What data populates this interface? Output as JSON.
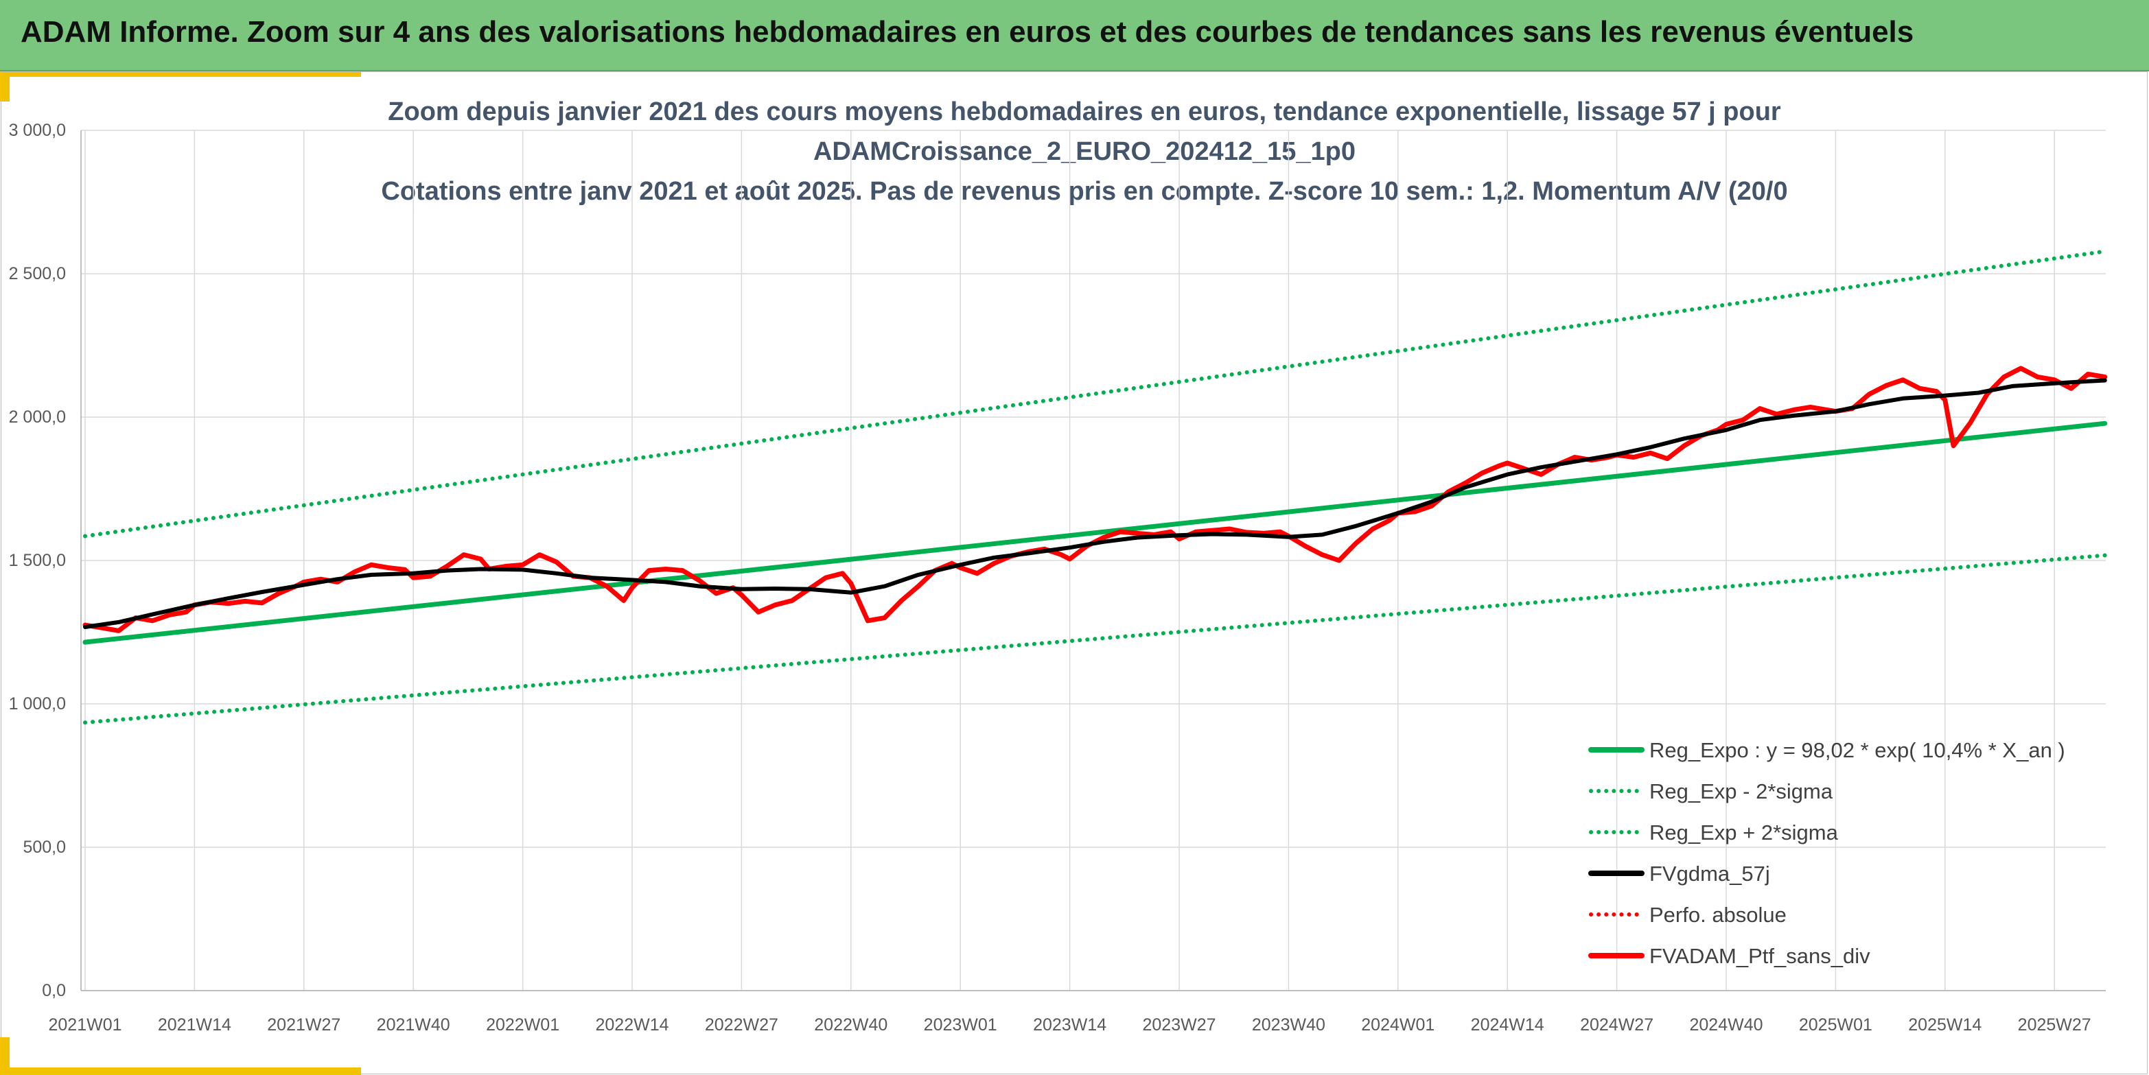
{
  "banner": {
    "title": "ADAM Informe. Zoom sur 4 ans des valorisations hebdomadaires en euros et des courbes de tendances sans les revenus éventuels"
  },
  "colors": {
    "banner_bg": "#7bc67e",
    "accent": "#f2c100",
    "trend": "#00b050",
    "average": "#000000",
    "portfolio": "#ff0000",
    "title_text": "#44546a"
  },
  "chart_data": {
    "type": "line",
    "title_lines": [
      "Zoom depuis janvier 2021 des cours moyens hebdomadaires en euros, tendance exponentielle, lissage 57 j pour",
      "ADAMCroissance_2_EURO_202412_15_1p0",
      "Cotations entre janv 2021 et août 2025. Pas de revenus pris en compte. Z-score 10 sem.: 1,2. Momentum A/V (20/0"
    ],
    "x_tick_labels": [
      "2021W01",
      "2021W14",
      "2021W27",
      "2021W40",
      "2022W01",
      "2022W14",
      "2022W27",
      "2022W40",
      "2023W01",
      "2023W14",
      "2023W27",
      "2023W40",
      "2024W01",
      "2024W14",
      "2024W27",
      "2024W40",
      "2025W01",
      "2025W14",
      "2025W27"
    ],
    "x_range": [
      "2021W01",
      "2025W33"
    ],
    "y_tick_labels": [
      "0,0",
      "500,0",
      "1 000,0",
      "1 500,0",
      "2 000,0",
      "2 500,0",
      "3 000,0"
    ],
    "ylim": [
      0,
      3000
    ],
    "grid": true,
    "legend_position": "bottom-right",
    "series": [
      {
        "name": "Reg_Expo : y = 98,02 * exp( 10,4% *  X_an )",
        "style": "solid",
        "color": "#00b050",
        "points": [
          [
            "2021W01",
            1215
          ],
          [
            "2025W33",
            1978
          ]
        ]
      },
      {
        "name": "Reg_Exp - 2*sigma",
        "style": "dotted",
        "color": "#00b050",
        "points": [
          [
            "2021W01",
            935
          ],
          [
            "2025W33",
            1518
          ]
        ]
      },
      {
        "name": "Reg_Exp + 2*sigma",
        "style": "dotted",
        "color": "#00b050",
        "points": [
          [
            "2021W01",
            1585
          ],
          [
            "2025W33",
            2578
          ]
        ]
      },
      {
        "name": "FVgdma_57j",
        "style": "solid",
        "color": "#000000",
        "points": [
          [
            "2021W01",
            1268
          ],
          [
            "2021W05",
            1285
          ],
          [
            "2021W09",
            1312
          ],
          [
            "2021W14",
            1345
          ],
          [
            "2021W18",
            1368
          ],
          [
            "2021W22",
            1390
          ],
          [
            "2021W27",
            1415
          ],
          [
            "2021W31",
            1435
          ],
          [
            "2021W35",
            1450
          ],
          [
            "2021W40",
            1455
          ],
          [
            "2021W44",
            1465
          ],
          [
            "2021W48",
            1470
          ],
          [
            "2022W01",
            1468
          ],
          [
            "2022W05",
            1455
          ],
          [
            "2022W09",
            1440
          ],
          [
            "2022W14",
            1432
          ],
          [
            "2022W18",
            1425
          ],
          [
            "2022W22",
            1410
          ],
          [
            "2022W27",
            1400
          ],
          [
            "2022W31",
            1402
          ],
          [
            "2022W35",
            1400
          ],
          [
            "2022W40",
            1388
          ],
          [
            "2022W44",
            1410
          ],
          [
            "2022W48",
            1450
          ],
          [
            "2023W01",
            1485
          ],
          [
            "2023W05",
            1510
          ],
          [
            "2023W09",
            1525
          ],
          [
            "2023W14",
            1545
          ],
          [
            "2023W18",
            1565
          ],
          [
            "2023W22",
            1580
          ],
          [
            "2023W27",
            1588
          ],
          [
            "2023W31",
            1592
          ],
          [
            "2023W35",
            1590
          ],
          [
            "2023W40",
            1582
          ],
          [
            "2023W44",
            1590
          ],
          [
            "2023W48",
            1620
          ],
          [
            "2024W01",
            1665
          ],
          [
            "2024W05",
            1705
          ],
          [
            "2024W09",
            1755
          ],
          [
            "2024W14",
            1800
          ],
          [
            "2024W18",
            1825
          ],
          [
            "2024W22",
            1845
          ],
          [
            "2024W27",
            1870
          ],
          [
            "2024W31",
            1895
          ],
          [
            "2024W35",
            1925
          ],
          [
            "2024W40",
            1955
          ],
          [
            "2024W44",
            1990
          ],
          [
            "2024W48",
            2005
          ],
          [
            "2025W01",
            2020
          ],
          [
            "2025W05",
            2045
          ],
          [
            "2025W09",
            2065
          ],
          [
            "2025W14",
            2075
          ],
          [
            "2025W18",
            2085
          ],
          [
            "2025W22",
            2108
          ],
          [
            "2025W27",
            2118
          ],
          [
            "2025W31",
            2125
          ],
          [
            "2025W33",
            2128
          ]
        ]
      },
      {
        "name": "Perfo. absolue",
        "style": "dotted",
        "color": "#ff0000",
        "points": []
      },
      {
        "name": "FVADAM_Ptf_sans_div",
        "style": "solid",
        "color": "#ff0000",
        "points": [
          [
            "2021W01",
            1275
          ],
          [
            "2021W03",
            1265
          ],
          [
            "2021W05",
            1255
          ],
          [
            "2021W07",
            1300
          ],
          [
            "2021W09",
            1290
          ],
          [
            "2021W11",
            1310
          ],
          [
            "2021W13",
            1320
          ],
          [
            "2021W14",
            1345
          ],
          [
            "2021W16",
            1355
          ],
          [
            "2021W18",
            1350
          ],
          [
            "2021W20",
            1358
          ],
          [
            "2021W22",
            1352
          ],
          [
            "2021W24",
            1385
          ],
          [
            "2021W26",
            1410
          ],
          [
            "2021W27",
            1425
          ],
          [
            "2021W29",
            1435
          ],
          [
            "2021W31",
            1425
          ],
          [
            "2021W33",
            1460
          ],
          [
            "2021W35",
            1485
          ],
          [
            "2021W37",
            1475
          ],
          [
            "2021W39",
            1468
          ],
          [
            "2021W40",
            1440
          ],
          [
            "2021W42",
            1445
          ],
          [
            "2021W44",
            1480
          ],
          [
            "2021W46",
            1520
          ],
          [
            "2021W48",
            1505
          ],
          [
            "2021W49",
            1470
          ],
          [
            "2021W51",
            1480
          ],
          [
            "2022W01",
            1485
          ],
          [
            "2022W03",
            1520
          ],
          [
            "2022W05",
            1495
          ],
          [
            "2022W07",
            1445
          ],
          [
            "2022W09",
            1440
          ],
          [
            "2022W11",
            1410
          ],
          [
            "2022W13",
            1360
          ],
          [
            "2022W14",
            1405
          ],
          [
            "2022W16",
            1465
          ],
          [
            "2022W18",
            1470
          ],
          [
            "2022W20",
            1465
          ],
          [
            "2022W22",
            1430
          ],
          [
            "2022W24",
            1385
          ],
          [
            "2022W26",
            1405
          ],
          [
            "2022W27",
            1380
          ],
          [
            "2022W29",
            1320
          ],
          [
            "2022W31",
            1345
          ],
          [
            "2022W33",
            1360
          ],
          [
            "2022W35",
            1400
          ],
          [
            "2022W37",
            1440
          ],
          [
            "2022W39",
            1455
          ],
          [
            "2022W40",
            1420
          ],
          [
            "2022W42",
            1290
          ],
          [
            "2022W44",
            1300
          ],
          [
            "2022W46",
            1360
          ],
          [
            "2022W48",
            1410
          ],
          [
            "2022W50",
            1465
          ],
          [
            "2022W52",
            1490
          ],
          [
            "2023W01",
            1475
          ],
          [
            "2023W03",
            1455
          ],
          [
            "2023W05",
            1490
          ],
          [
            "2023W07",
            1515
          ],
          [
            "2023W09",
            1530
          ],
          [
            "2023W11",
            1540
          ],
          [
            "2023W13",
            1520
          ],
          [
            "2023W14",
            1505
          ],
          [
            "2023W16",
            1550
          ],
          [
            "2023W18",
            1580
          ],
          [
            "2023W20",
            1600
          ],
          [
            "2023W22",
            1595
          ],
          [
            "2023W24",
            1590
          ],
          [
            "2023W26",
            1600
          ],
          [
            "2023W27",
            1575
          ],
          [
            "2023W29",
            1600
          ],
          [
            "2023W31",
            1605
          ],
          [
            "2023W33",
            1610
          ],
          [
            "2023W35",
            1598
          ],
          [
            "2023W37",
            1595
          ],
          [
            "2023W39",
            1600
          ],
          [
            "2023W40",
            1585
          ],
          [
            "2023W42",
            1550
          ],
          [
            "2023W44",
            1520
          ],
          [
            "2023W46",
            1500
          ],
          [
            "2023W48",
            1560
          ],
          [
            "2023W50",
            1610
          ],
          [
            "2023W52",
            1640
          ],
          [
            "2024W01",
            1665
          ],
          [
            "2024W03",
            1670
          ],
          [
            "2024W05",
            1690
          ],
          [
            "2024W07",
            1740
          ],
          [
            "2024W09",
            1770
          ],
          [
            "2024W11",
            1805
          ],
          [
            "2024W13",
            1830
          ],
          [
            "2024W14",
            1840
          ],
          [
            "2024W16",
            1820
          ],
          [
            "2024W18",
            1800
          ],
          [
            "2024W20",
            1835
          ],
          [
            "2024W22",
            1860
          ],
          [
            "2024W24",
            1850
          ],
          [
            "2024W26",
            1860
          ],
          [
            "2024W27",
            1868
          ],
          [
            "2024W29",
            1860
          ],
          [
            "2024W31",
            1875
          ],
          [
            "2024W33",
            1855
          ],
          [
            "2024W35",
            1900
          ],
          [
            "2024W37",
            1935
          ],
          [
            "2024W39",
            1955
          ],
          [
            "2024W40",
            1975
          ],
          [
            "2024W42",
            1990
          ],
          [
            "2024W44",
            2030
          ],
          [
            "2024W46",
            2010
          ],
          [
            "2024W48",
            2025
          ],
          [
            "2024W50",
            2035
          ],
          [
            "2025W01",
            2020
          ],
          [
            "2025W03",
            2030
          ],
          [
            "2025W05",
            2080
          ],
          [
            "2025W07",
            2110
          ],
          [
            "2025W09",
            2130
          ],
          [
            "2025W11",
            2100
          ],
          [
            "2025W13",
            2090
          ],
          [
            "2025W14",
            2060
          ],
          [
            "2025W15",
            1900
          ],
          [
            "2025W17",
            1980
          ],
          [
            "2025W19",
            2080
          ],
          [
            "2025W21",
            2140
          ],
          [
            "2025W23",
            2170
          ],
          [
            "2025W25",
            2140
          ],
          [
            "2025W27",
            2130
          ],
          [
            "2025W29",
            2100
          ],
          [
            "2025W31",
            2150
          ],
          [
            "2025W33",
            2140
          ]
        ]
      }
    ]
  }
}
